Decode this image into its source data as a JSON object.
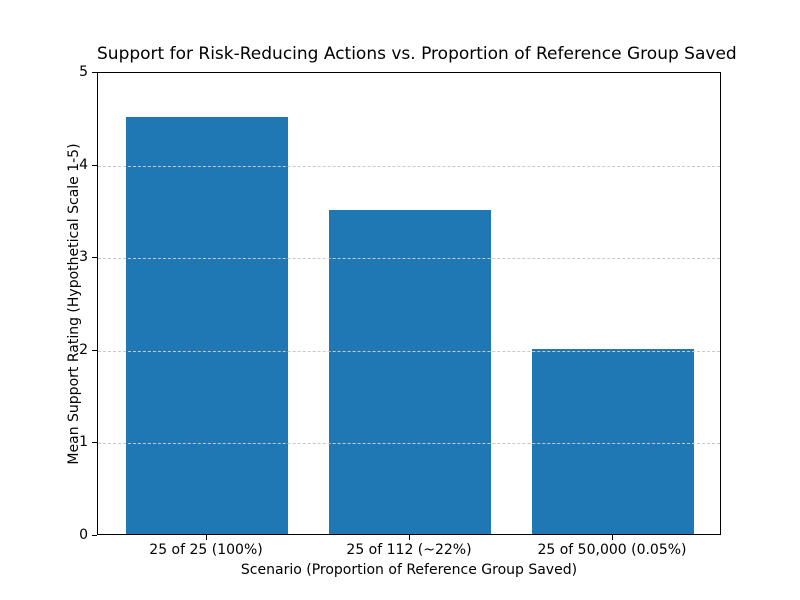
{
  "chart_data": {
    "type": "bar",
    "title": "Support for Risk-Reducing Actions vs. Proportion of Reference Group Saved",
    "categories": [
      "25 of 25 (100%)",
      "25 of 112 (~22%)",
      "25 of 50,000 (0.05%)"
    ],
    "values": [
      4.5,
      3.5,
      2.0
    ],
    "xlabel": "Scenario (Proportion of Reference Group Saved)",
    "ylabel": "Mean Support Rating (Hypothetical Scale 1-5)",
    "ylim": [
      0,
      5
    ],
    "yticks": [
      0,
      1,
      2,
      3,
      4,
      5
    ],
    "bar_color": "#1f77b4",
    "grid": "horizontal-dashed",
    "grid_color": "#c9c9c9",
    "legend": "none"
  }
}
